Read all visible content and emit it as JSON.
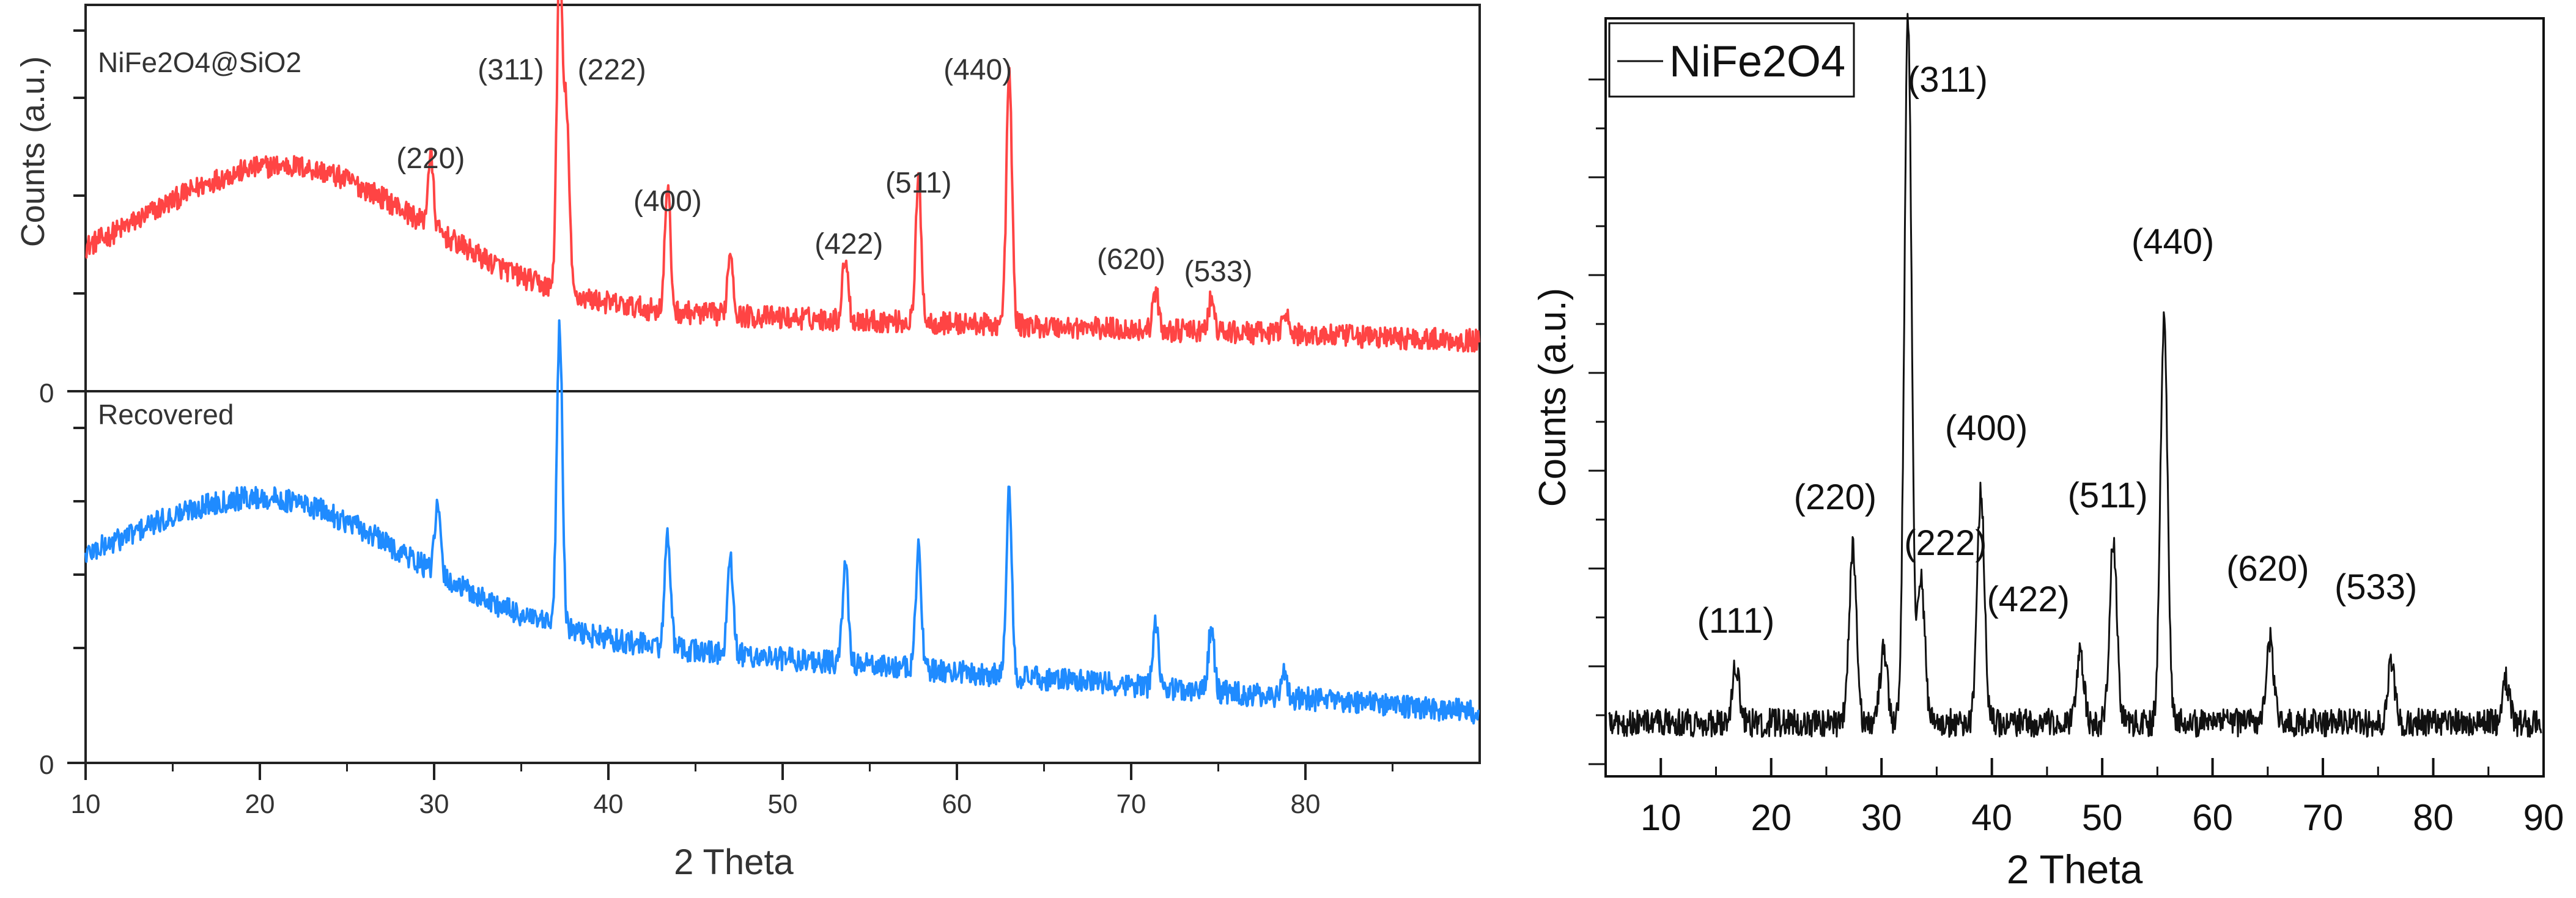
{
  "chart_data": [
    {
      "type": "line",
      "title": "",
      "xlabel": "2 Theta",
      "ylabel": "Counts (a.u.)",
      "xlim": [
        10,
        90
      ],
      "x_ticks": [
        10,
        20,
        30,
        40,
        50,
        60,
        70,
        80
      ],
      "grid": false,
      "panels": [
        {
          "name": "NiFe2O4@SiO2",
          "color": "#ff4444",
          "y_tick_label": "0",
          "hump": {
            "center": 21.5,
            "height": 0.42,
            "width": 8
          },
          "start_level": 0.24,
          "end_level": 0.1,
          "peaks": [
            {
              "two_theta": 29.8,
              "height": 0.22
            },
            {
              "two_theta": 37.2,
              "height": 1.0
            },
            {
              "two_theta": 37.6,
              "height": 0.55
            },
            {
              "two_theta": 43.4,
              "height": 0.38
            },
            {
              "two_theta": 47.0,
              "height": 0.2
            },
            {
              "two_theta": 53.6,
              "height": 0.2
            },
            {
              "two_theta": 57.8,
              "height": 0.44
            },
            {
              "two_theta": 63.0,
              "height": 0.78
            },
            {
              "two_theta": 71.4,
              "height": 0.12
            },
            {
              "two_theta": 74.6,
              "height": 0.1
            },
            {
              "two_theta": 78.8,
              "height": 0.08
            }
          ],
          "annotations": [
            {
              "text": "(220)",
              "x": 29.8
            },
            {
              "text": "(311)",
              "x": 34.4
            },
            {
              "text": "(222)",
              "x": 40.2
            },
            {
              "text": "(400)",
              "x": 43.4
            },
            {
              "text": "(422)",
              "x": 53.8
            },
            {
              "text": "(511)",
              "x": 57.8
            },
            {
              "text": "(440)",
              "x": 61.2
            },
            {
              "text": "(620)",
              "x": 70.0
            },
            {
              "text": "(533)",
              "x": 75.0
            }
          ]
        },
        {
          "name": "Recovered",
          "color": "#1f8bff",
          "y_tick_label": "0",
          "hump": {
            "center": 20.5,
            "height": 0.36,
            "width": 8
          },
          "start_level": 0.42,
          "end_level": 0.1,
          "peaks": [
            {
              "two_theta": 30.2,
              "height": 0.2
            },
            {
              "two_theta": 37.2,
              "height": 0.9
            },
            {
              "two_theta": 43.4,
              "height": 0.35
            },
            {
              "two_theta": 47.0,
              "height": 0.28
            },
            {
              "two_theta": 53.6,
              "height": 0.3
            },
            {
              "two_theta": 57.8,
              "height": 0.36
            },
            {
              "two_theta": 63.0,
              "height": 0.55
            },
            {
              "two_theta": 71.4,
              "height": 0.2
            },
            {
              "two_theta": 74.6,
              "height": 0.2
            },
            {
              "two_theta": 78.8,
              "height": 0.08
            }
          ]
        }
      ]
    },
    {
      "type": "line",
      "title": "",
      "xlabel": "2 Theta",
      "ylabel": "Counts (a.u.)",
      "xlim": [
        5,
        90
      ],
      "x_ticks": [
        10,
        20,
        30,
        40,
        50,
        60,
        70,
        80,
        90
      ],
      "legend": "NiFe2O4",
      "legend_position": "top-left",
      "grid": false,
      "series": [
        {
          "name": "NiFe2O4",
          "color": "#111111",
          "baseline": 0.05,
          "peaks": [
            {
              "two_theta": 16.8,
              "height": 0.08
            },
            {
              "two_theta": 27.4,
              "height": 0.25
            },
            {
              "two_theta": 30.2,
              "height": 0.1
            },
            {
              "two_theta": 32.4,
              "height": 1.0
            },
            {
              "two_theta": 33.6,
              "height": 0.2
            },
            {
              "two_theta": 39.0,
              "height": 0.33
            },
            {
              "two_theta": 48.0,
              "height": 0.1
            },
            {
              "two_theta": 51.0,
              "height": 0.26
            },
            {
              "two_theta": 55.6,
              "height": 0.57
            },
            {
              "two_theta": 65.2,
              "height": 0.12
            },
            {
              "two_theta": 76.2,
              "height": 0.08
            },
            {
              "two_theta": 86.6,
              "height": 0.06
            }
          ]
        }
      ],
      "annotations": [
        {
          "text": "(111)",
          "x": 16.8
        },
        {
          "text": "(220)",
          "x": 25.8
        },
        {
          "text": "(311)",
          "x": 36.0
        },
        {
          "text": "(222)",
          "x": 35.8
        },
        {
          "text": "(400)",
          "x": 39.5
        },
        {
          "text": "(422)",
          "x": 43.3
        },
        {
          "text": "(511)",
          "x": 50.5
        },
        {
          "text": "(440)",
          "x": 56.4
        },
        {
          "text": "(620)",
          "x": 65.0
        },
        {
          "text": "(533)",
          "x": 74.8
        }
      ]
    }
  ]
}
